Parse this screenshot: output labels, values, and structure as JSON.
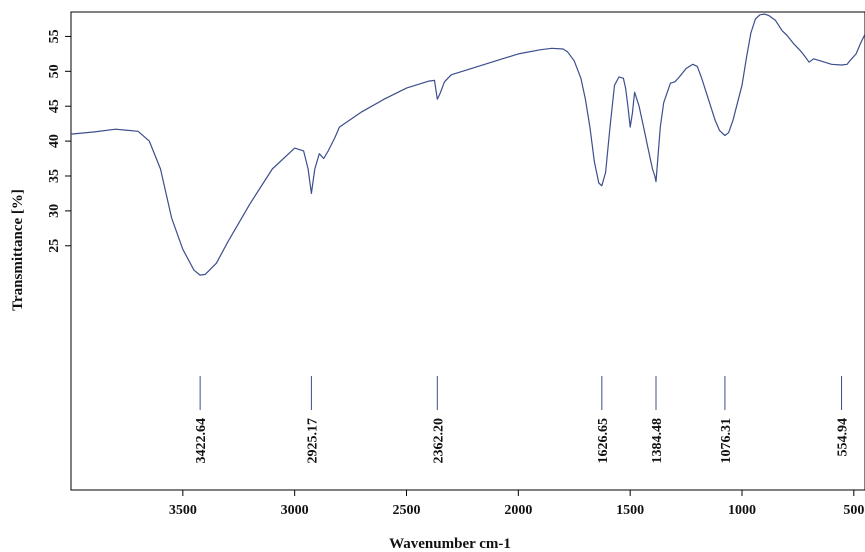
{
  "chart_data": {
    "type": "line",
    "title": "",
    "xlabel": "Wavenumber cm-1",
    "ylabel": "Transmittance [%]",
    "xlim": [
      4000,
      450
    ],
    "ylim": [
      -10,
      58.5
    ],
    "x_reversed": true,
    "grid": false,
    "legend": "none",
    "x_ticks": [
      3500,
      3000,
      2500,
      2000,
      1500,
      1000,
      500
    ],
    "y_ticks": [
      25,
      30,
      35,
      40,
      45,
      50,
      55
    ],
    "colors": {
      "line": "#3c4f8c",
      "peak_marker": "#3c4f8c",
      "axis": "#000000"
    },
    "series": [
      {
        "x": [
          4000,
          3900,
          3800,
          3700,
          3650,
          3600,
          3550,
          3500,
          3450,
          3422.64,
          3400,
          3350,
          3300,
          3200,
          3100,
          3000,
          2960,
          2940,
          2925.17,
          2910,
          2890,
          2870,
          2850,
          2820,
          2800,
          2700,
          2600,
          2500,
          2400,
          2375,
          2362.2,
          2350,
          2330,
          2300,
          2200,
          2100,
          2000,
          1900,
          1850,
          1800,
          1780,
          1750,
          1720,
          1700,
          1680,
          1660,
          1640,
          1626.65,
          1610,
          1590,
          1570,
          1550,
          1530,
          1520,
          1510,
          1500,
          1490,
          1480,
          1460,
          1440,
          1420,
          1400,
          1390,
          1384.48,
          1375,
          1365,
          1350,
          1320,
          1300,
          1280,
          1250,
          1220,
          1200,
          1180,
          1150,
          1120,
          1100,
          1076.31,
          1060,
          1040,
          1000,
          980,
          960,
          940,
          920,
          900,
          880,
          850,
          820,
          800,
          770,
          740,
          720,
          700,
          680,
          650,
          600,
          554.94,
          530,
          510,
          490,
          470,
          450
        ],
        "y": [
          41,
          41.3,
          41.7,
          41.4,
          40,
          36,
          29,
          24.5,
          21.5,
          20.8,
          20.9,
          22.5,
          25.5,
          31,
          36,
          39,
          38.6,
          36,
          32.5,
          36,
          38.2,
          37.5,
          38.6,
          40.5,
          42,
          44.2,
          46,
          47.6,
          48.6,
          48.7,
          46,
          46.8,
          48.5,
          49.5,
          50.5,
          51.5,
          52.5,
          53.1,
          53.3,
          53.2,
          52.8,
          51.5,
          49,
          46,
          42,
          37,
          34,
          33.6,
          35.5,
          42,
          48,
          49.2,
          49,
          47.5,
          45,
          42,
          44,
          47,
          45,
          42,
          39,
          36,
          35,
          34.2,
          38,
          42,
          45.5,
          48.3,
          48.5,
          49.2,
          50.4,
          51,
          50.7,
          49,
          46,
          43,
          41.5,
          40.8,
          41.2,
          43,
          48,
          52,
          55.5,
          57.5,
          58.1,
          58.2,
          58,
          57.3,
          55.8,
          55.2,
          54,
          53,
          52.2,
          51.3,
          51.8,
          51.5,
          51,
          50.9,
          51,
          51.8,
          52.5,
          54,
          55.3
        ]
      }
    ],
    "peaks": [
      {
        "x": 3422.64,
        "label": "3422.64"
      },
      {
        "x": 2925.17,
        "label": "2925.17"
      },
      {
        "x": 2362.2,
        "label": "2362.20"
      },
      {
        "x": 1626.65,
        "label": "1626.65"
      },
      {
        "x": 1384.48,
        "label": "1384.48"
      },
      {
        "x": 1076.31,
        "label": "1076.31"
      },
      {
        "x": 554.94,
        "label": "554.94"
      }
    ]
  }
}
